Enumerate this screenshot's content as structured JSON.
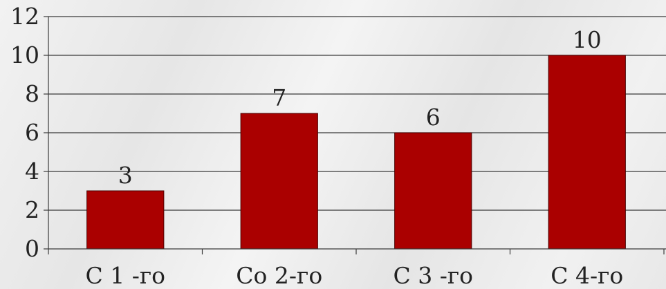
{
  "chart_data": {
    "type": "bar",
    "categories": [
      "С 1 -го",
      "Со 2-го",
      "С 3 -го",
      "С 4-го"
    ],
    "values": [
      3,
      7,
      6,
      10
    ],
    "data_labels": [
      "3",
      "7",
      "6",
      "10"
    ],
    "ylim": [
      0,
      12
    ],
    "yticks": [
      0,
      2,
      4,
      6,
      8,
      10,
      12
    ],
    "ytick_labels": [
      "0",
      "2",
      "4",
      "6",
      "8",
      "10",
      "12"
    ],
    "grid": true,
    "bar_color": "#aa0000"
  }
}
